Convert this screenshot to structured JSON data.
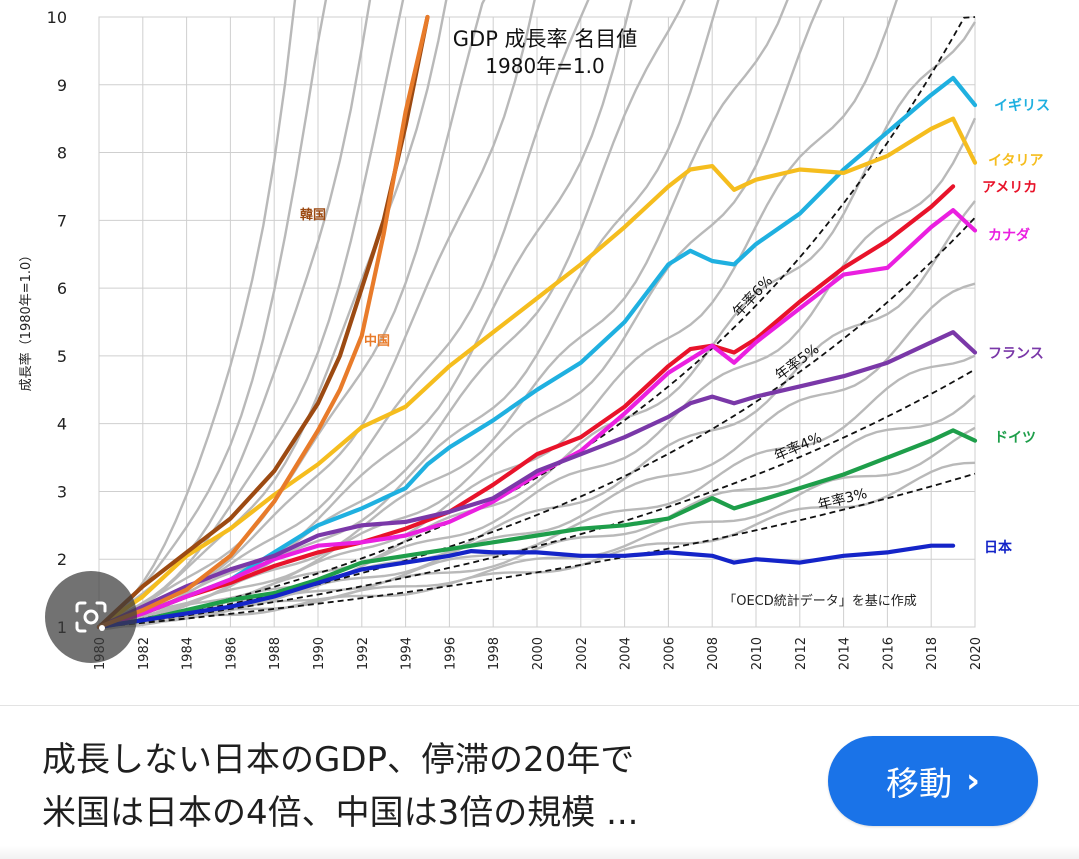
{
  "result": {
    "caption_line1": "成長しない日本のGDP、停滞の20年で",
    "caption_line2": "米国は日本の4倍、中国は3倍の規模 ...",
    "visit_label": "移動",
    "visit_chevron": "›"
  },
  "lens": {
    "icon": "lens-camera-icon"
  },
  "chart_data": {
    "type": "line",
    "title": "GDP 成長率 名目値",
    "subtitle": "1980年=1.0",
    "ylabel": "成長率（1980年=1.0）",
    "xlabel": "",
    "xlim": [
      1980,
      2020
    ],
    "ylim": [
      1,
      10
    ],
    "xticks": [
      "1980",
      "1982",
      "1984",
      "1986",
      "1988",
      "1990",
      "1992",
      "1994",
      "1996",
      "1998",
      "2000",
      "2002",
      "2004",
      "2006",
      "2008",
      "2010",
      "2012",
      "2014",
      "2016",
      "2018",
      "2020"
    ],
    "yticks": [
      "1",
      "2",
      "3",
      "4",
      "5",
      "6",
      "7",
      "8",
      "9",
      "10"
    ],
    "grid": true,
    "source_note": "「OECD統計データ」を基に作成",
    "reference_lines": [
      {
        "name": "年率6%",
        "rate": 0.06
      },
      {
        "name": "年率5%",
        "rate": 0.05
      },
      {
        "name": "年率4%",
        "rate": 0.04
      },
      {
        "name": "年率3%",
        "rate": 0.03
      }
    ],
    "series": [
      {
        "name": "イギリス",
        "color": "#1fb0e0",
        "x": [
          1980,
          1982,
          1984,
          1986,
          1988,
          1990,
          1992,
          1994,
          1995,
          1996,
          1998,
          2000,
          2002,
          2004,
          2006,
          2007,
          2008,
          2009,
          2010,
          2012,
          2014,
          2016,
          2018,
          2019,
          2020
        ],
        "y": [
          1,
          1.2,
          1.45,
          1.7,
          2.1,
          2.5,
          2.75,
          3.05,
          3.4,
          3.65,
          4.05,
          4.5,
          4.9,
          5.5,
          6.35,
          6.55,
          6.4,
          6.35,
          6.65,
          7.1,
          7.75,
          8.3,
          8.85,
          9.1,
          8.7
        ]
      },
      {
        "name": "イタリア",
        "color": "#f5bd1e",
        "x": [
          1980,
          1982,
          1984,
          1986,
          1988,
          1990,
          1992,
          1994,
          1996,
          1998,
          2000,
          2002,
          2004,
          2006,
          2007,
          2008,
          2009,
          2010,
          2012,
          2014,
          2016,
          2018,
          2019,
          2020
        ],
        "y": [
          1,
          1.45,
          2.05,
          2.45,
          2.95,
          3.4,
          3.95,
          4.25,
          4.85,
          5.35,
          5.85,
          6.35,
          6.9,
          7.5,
          7.75,
          7.8,
          7.45,
          7.6,
          7.75,
          7.7,
          7.95,
          8.35,
          8.5,
          7.85
        ]
      },
      {
        "name": "アメリカ",
        "color": "#e8132a",
        "x": [
          1980,
          1982,
          1984,
          1986,
          1988,
          1990,
          1992,
          1994,
          1996,
          1998,
          2000,
          2002,
          2004,
          2006,
          2007,
          2008,
          2009,
          2010,
          2012,
          2014,
          2016,
          2018,
          2019
        ],
        "y": [
          1,
          1.2,
          1.45,
          1.65,
          1.9,
          2.1,
          2.25,
          2.45,
          2.7,
          3.1,
          3.55,
          3.8,
          4.25,
          4.85,
          5.1,
          5.15,
          5.05,
          5.25,
          5.8,
          6.3,
          6.7,
          7.2,
          7.5
        ]
      },
      {
        "name": "カナダ",
        "color": "#ea1fe0",
        "x": [
          1980,
          1982,
          1984,
          1986,
          1988,
          1990,
          1992,
          1994,
          1996,
          1998,
          2000,
          2002,
          2004,
          2006,
          2008,
          2009,
          2010,
          2012,
          2014,
          2016,
          2018,
          2019,
          2020
        ],
        "y": [
          1,
          1.2,
          1.45,
          1.7,
          2.0,
          2.2,
          2.25,
          2.35,
          2.55,
          2.85,
          3.25,
          3.6,
          4.15,
          4.75,
          5.15,
          4.9,
          5.2,
          5.7,
          6.2,
          6.3,
          6.9,
          7.15,
          6.85
        ]
      },
      {
        "name": "フランス",
        "color": "#7a38a8",
        "x": [
          1980,
          1982,
          1984,
          1986,
          1988,
          1990,
          1992,
          1994,
          1996,
          1998,
          2000,
          2002,
          2004,
          2006,
          2007,
          2008,
          2009,
          2010,
          2012,
          2014,
          2016,
          2018,
          2019,
          2020
        ],
        "y": [
          1,
          1.3,
          1.6,
          1.85,
          2.05,
          2.35,
          2.5,
          2.55,
          2.7,
          2.9,
          3.3,
          3.55,
          3.8,
          4.1,
          4.3,
          4.4,
          4.3,
          4.4,
          4.55,
          4.7,
          4.9,
          5.2,
          5.35,
          5.05
        ]
      },
      {
        "name": "ドイツ",
        "color": "#1e9e4a",
        "x": [
          1980,
          1982,
          1984,
          1986,
          1988,
          1990,
          1992,
          1994,
          1996,
          1998,
          2000,
          2002,
          2004,
          2006,
          2008,
          2009,
          2010,
          2012,
          2014,
          2016,
          2018,
          2019,
          2020
        ],
        "y": [
          1,
          1.1,
          1.25,
          1.4,
          1.5,
          1.7,
          1.95,
          2.05,
          2.15,
          2.25,
          2.35,
          2.45,
          2.5,
          2.6,
          2.9,
          2.75,
          2.85,
          3.05,
          3.25,
          3.5,
          3.75,
          3.9,
          3.75
        ]
      },
      {
        "name": "日本",
        "color": "#1424c8",
        "x": [
          1980,
          1982,
          1984,
          1986,
          1988,
          1990,
          1992,
          1994,
          1996,
          1997,
          1998,
          2000,
          2002,
          2004,
          2006,
          2008,
          2009,
          2010,
          2012,
          2014,
          2016,
          2018,
          2019
        ],
        "y": [
          1,
          1.1,
          1.2,
          1.3,
          1.45,
          1.65,
          1.85,
          1.95,
          2.05,
          2.12,
          2.1,
          2.1,
          2.05,
          2.05,
          2.1,
          2.05,
          1.95,
          2.0,
          1.95,
          2.05,
          2.1,
          2.2,
          2.2
        ]
      },
      {
        "name": "韓国",
        "color": "#9c4a12",
        "x": [
          1980,
          1982,
          1984,
          1986,
          1988,
          1990,
          1991,
          1992,
          1993,
          1994,
          1995
        ],
        "y": [
          1,
          1.6,
          2.1,
          2.6,
          3.3,
          4.3,
          5.0,
          6.0,
          7.0,
          8.4,
          10
        ]
      },
      {
        "name": "中国",
        "color": "#e87b2a",
        "x": [
          1980,
          1982,
          1984,
          1986,
          1988,
          1990,
          1991,
          1992,
          1993,
          1994,
          1995
        ],
        "y": [
          1,
          1.25,
          1.55,
          2.05,
          2.85,
          3.9,
          4.5,
          5.3,
          6.8,
          8.6,
          10
        ]
      }
    ]
  }
}
